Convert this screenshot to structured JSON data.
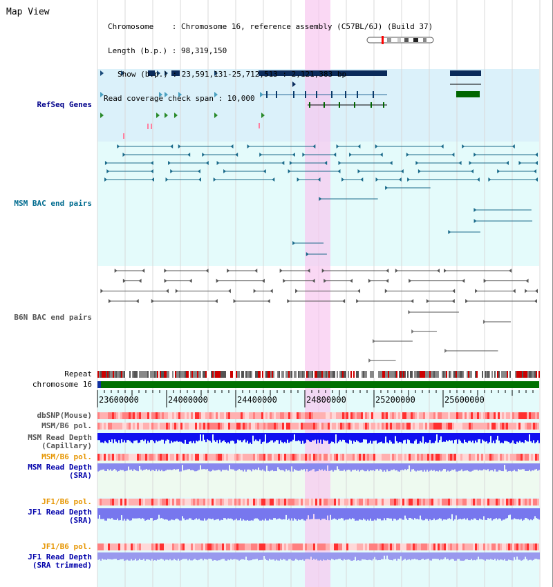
{
  "title": "Map View",
  "header": {
    "chromosome_label": "Chromosome",
    "chromosome_value": "Chromosome 16, reference assembly (C57BL/6J) (Build 37)",
    "length_label": "Length (b.p.)",
    "length_value": "98,319,150",
    "show_label": "Show (b.p.)",
    "show_value": "23,591,131-25,712,513 : 2,121,383 bp",
    "coverage_label": "Read coverage check span",
    "coverage_value": "10,000"
  },
  "tracks": {
    "refseq": "RefSeq Genes",
    "msm_bac": "MSM BAC end pairs",
    "b6n_bac": "B6N BAC end pairs",
    "repeat": "Repeat",
    "chromosome": "chromosome 16",
    "dbsnp": "dbSNP(Mouse)",
    "msm_b6_pol_1": "MSM/B6 pol.",
    "msm_depth_cap_1": "MSM Read Depth",
    "msm_depth_cap_2": "(Capillary)",
    "msm_b6_pol_2": "MSM/B6 pol.",
    "msm_depth_sra_1": "MSM Read Depth",
    "msm_depth_sra_2": "(SRA)",
    "jf1_b6_pol_1": "JF1/B6 pol.",
    "jf1_depth_sra_1": "JF1 Read Depth",
    "jf1_depth_sra_2": "(SRA)",
    "jf1_b6_pol_2": "JF1/B6 pol.",
    "jf1_depth_trim_1": "JF1 Read Depth",
    "jf1_depth_trim_2": "(SRA trimmed)"
  },
  "axis": {
    "ticks": [
      "23600000",
      "24000000",
      "24400000",
      "24800000",
      "25200000",
      "25600000"
    ]
  },
  "colors": {
    "refseq_label": "#00008b",
    "msm_label": "#006b8f",
    "b6n_label": "#555555",
    "orange_label": "#e69500",
    "blue_label": "#0000aa",
    "highlight": "#f8d8f8"
  }
}
